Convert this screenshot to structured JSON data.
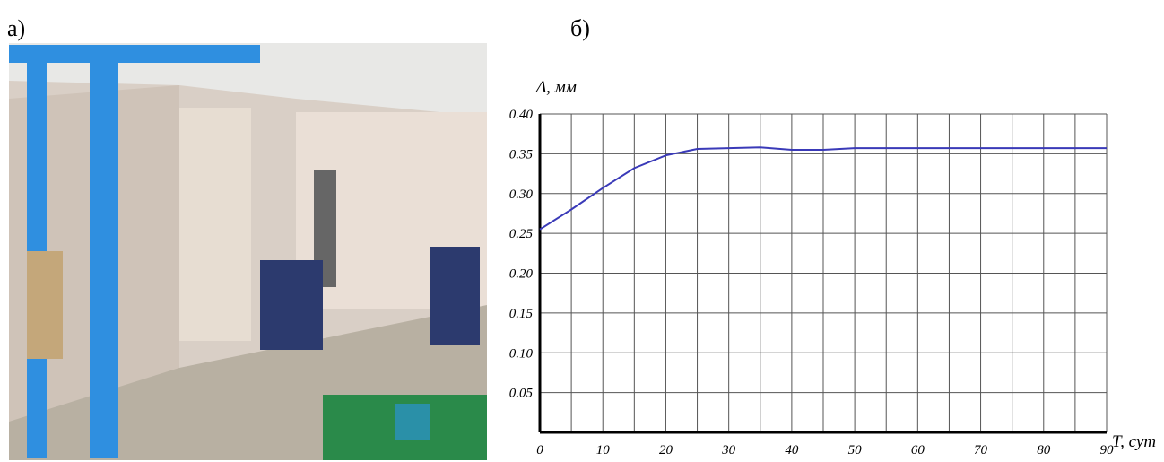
{
  "panel_labels": [
    "а)",
    "б)"
  ],
  "chart_data": {
    "type": "line",
    "ylabel": "Δ, мм",
    "xlabel": "T, сут",
    "x": [
      0,
      5,
      10,
      15,
      20,
      25,
      30,
      35,
      40,
      45,
      50,
      55,
      60,
      65,
      70,
      75,
      80,
      85,
      90
    ],
    "series": [
      {
        "color": "#3a3ab8",
        "values": [
          0.255,
          0.28,
          0.307,
          0.332,
          0.348,
          0.356,
          0.357,
          0.358,
          0.355,
          0.355,
          0.357,
          0.357,
          0.357,
          0.357,
          0.357,
          0.357,
          0.357,
          0.357,
          0.357
        ]
      }
    ],
    "xlim": [
      0,
      90
    ],
    "ylim": [
      0,
      0.4
    ],
    "xticks": [
      0,
      10,
      20,
      30,
      40,
      50,
      60,
      70,
      80,
      90
    ],
    "xminorticks": [
      5,
      15,
      25,
      35,
      45,
      55,
      65,
      75,
      85
    ],
    "yticks": [
      {
        "value": 0.4,
        "label": "0.40"
      },
      0.35,
      {
        "value": 0.3,
        "label": "0.30"
      },
      0.25,
      {
        "value": 0.2,
        "label": "0.20"
      },
      0.15,
      {
        "value": 0.1,
        "label": "0.10"
      },
      0.05
    ],
    "grid": true
  }
}
